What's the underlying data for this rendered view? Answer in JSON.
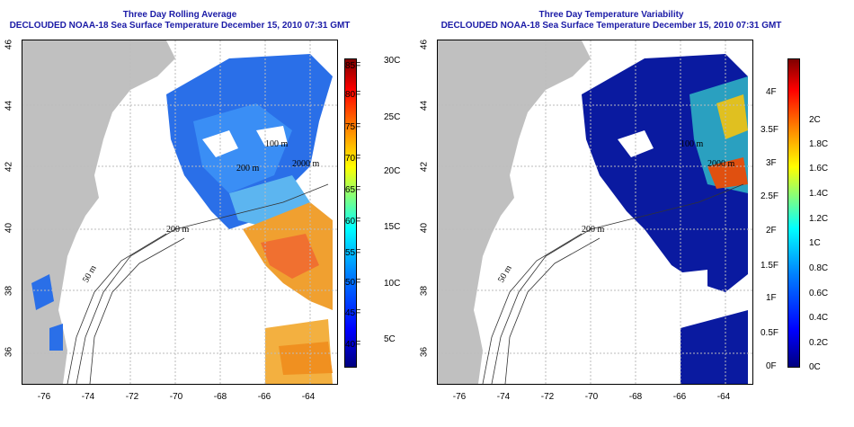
{
  "left_panel": {
    "title_line1": "Three Day Rolling Average",
    "title_line2": "DECLOUDED NOAA-18 Sea Surface Temperature December 15, 2010 07:31 GMT",
    "colorbar": {
      "f_labels": [
        "85F",
        "80F",
        "75F",
        "70F",
        "65F",
        "60F",
        "55F",
        "50F",
        "45F",
        "40F"
      ],
      "c_labels": [
        "30C",
        "25C",
        "20C",
        "15C",
        "10C",
        "5C"
      ]
    },
    "contour_labels": [
      "200 m",
      "50 m",
      "100 m",
      "200 m",
      "2000 m"
    ]
  },
  "right_panel": {
    "title_line1": "Three Day Temperature Variability",
    "title_line2": "DECLOUDED NOAA-18 Sea Surface Temperature December 15, 2010 07:31 GMT",
    "colorbar": {
      "f_labels": [
        "4F",
        "3.5F",
        "3F",
        "2.5F",
        "2F",
        "1.5F",
        "1F",
        "0.5F",
        "0F"
      ],
      "c_labels": [
        "2C",
        "1.8C",
        "1.6C",
        "1.4C",
        "1.2C",
        "1C",
        "0.8C",
        "0.6C",
        "0.4C",
        "0.2C",
        "0C"
      ]
    },
    "contour_labels": [
      "200 m",
      "50 m",
      "100 m",
      "2000 m"
    ]
  },
  "axes": {
    "lon_labels": [
      "-76",
      "-74",
      "-72",
      "-70",
      "-68",
      "-66",
      "-64"
    ],
    "lat_labels": [
      "46",
      "44",
      "42",
      "40",
      "38",
      "36"
    ]
  },
  "colors": {
    "title": "#1a1aa6",
    "land": "#c0c0c0",
    "cloud": "#ffffff"
  }
}
